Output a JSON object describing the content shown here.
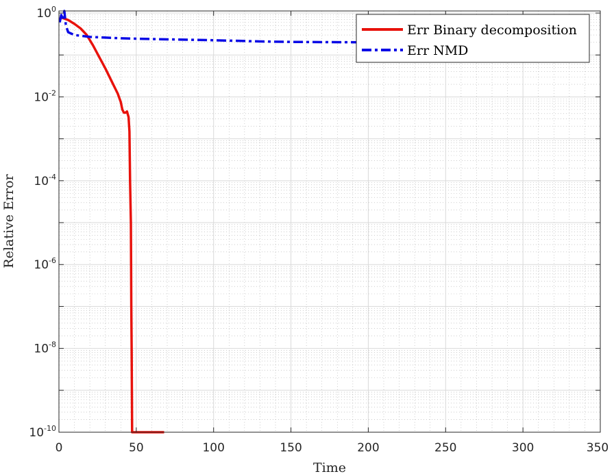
{
  "chart_data": {
    "type": "line",
    "xlabel": "Time",
    "ylabel": "Relative Error",
    "xlim": [
      0,
      350
    ],
    "ylim_log10": [
      -10,
      0.05
    ],
    "y_scale": "log",
    "grid": true,
    "minor_grid": true,
    "legend_position": "top-right",
    "x_ticks": [
      "0",
      "50",
      "100",
      "150",
      "200",
      "250",
      "300",
      "350"
    ],
    "y_ticks": [
      {
        "base": "10",
        "exp": "0"
      },
      {
        "base": "10",
        "exp": "-2"
      },
      {
        "base": "10",
        "exp": "-4"
      },
      {
        "base": "10",
        "exp": "-6"
      },
      {
        "base": "10",
        "exp": "-8"
      },
      {
        "base": "10",
        "exp": "-10"
      }
    ],
    "series": [
      {
        "name": "Err Binary decomposition",
        "color": "#e8120c",
        "style": "solid",
        "points": [
          [
            0.5,
            0.8
          ],
          [
            3,
            0.75
          ],
          [
            6,
            0.68
          ],
          [
            10,
            0.55
          ],
          [
            14,
            0.43
          ],
          [
            18,
            0.3
          ],
          [
            22,
            0.17
          ],
          [
            26,
            0.09
          ],
          [
            30,
            0.048
          ],
          [
            34,
            0.024
          ],
          [
            38,
            0.012
          ],
          [
            40,
            0.0075
          ],
          [
            41,
            0.005
          ],
          [
            42,
            0.0042
          ],
          [
            43,
            0.0042
          ],
          [
            44,
            0.0045
          ],
          [
            45,
            0.0033
          ],
          [
            45.6,
            0.0015
          ],
          [
            46,
            0.0001
          ],
          [
            46.5,
            1e-05
          ],
          [
            46.8,
            1e-07
          ],
          [
            47,
            1e-08
          ],
          [
            47.3,
            1e-10
          ],
          [
            68,
            1e-10
          ]
        ]
      },
      {
        "name": "Err NMD",
        "color": "#0a0ae6",
        "style": "dashdot",
        "points": [
          [
            0.5,
            0.6
          ],
          [
            1.5,
            0.9
          ],
          [
            2.5,
            0.7
          ],
          [
            3.5,
            1.12
          ],
          [
            4.5,
            0.5
          ],
          [
            6,
            0.35
          ],
          [
            10,
            0.3
          ],
          [
            20,
            0.27
          ],
          [
            40,
            0.25
          ],
          [
            60,
            0.24
          ],
          [
            100,
            0.225
          ],
          [
            130,
            0.21
          ],
          [
            150,
            0.205
          ],
          [
            200,
            0.2
          ],
          [
            250,
            0.195
          ],
          [
            300,
            0.19
          ],
          [
            343,
            0.19
          ]
        ]
      }
    ]
  }
}
